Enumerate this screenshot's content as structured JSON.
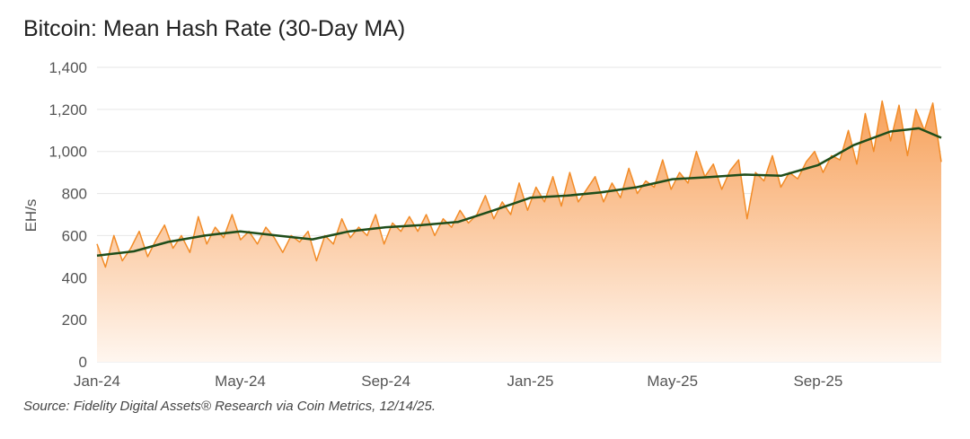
{
  "chart_data": {
    "type": "line",
    "title": "Bitcoin: Mean Hash Rate (30-Day MA)",
    "ylabel": "EH/s",
    "xlabel": "",
    "ylim": [
      0,
      1400
    ],
    "yticks": [
      "0",
      "200",
      "400",
      "600",
      "800",
      "1,000",
      "1,200",
      "1,400"
    ],
    "ytick_values": [
      0,
      200,
      400,
      600,
      800,
      1000,
      1200,
      1400
    ],
    "xticks": [
      "Jan-24",
      "May-24",
      "Sep-24",
      "Jan-25",
      "May-25",
      "Sep-25"
    ],
    "xtick_dates": [
      "2024-01-01",
      "2024-05-01",
      "2024-09-01",
      "2025-01-01",
      "2025-05-01",
      "2025-09-01"
    ],
    "x_range": [
      "2024-01-01",
      "2025-12-14"
    ],
    "grid": "horizontal",
    "colors": {
      "daily": "#f28c28",
      "ma": "#1f4d1a",
      "fill_top": "#f7a15a",
      "fill_bottom": "#fff6ef"
    },
    "series": [
      {
        "key": "daily",
        "sampling": "weekly",
        "start": "2024-01-01",
        "end": "2025-12-14",
        "values": [
          560,
          450,
          600,
          480,
          540,
          620,
          500,
          580,
          650,
          540,
          600,
          520,
          690,
          560,
          640,
          590,
          700,
          580,
          620,
          560,
          640,
          590,
          520,
          600,
          570,
          620,
          480,
          600,
          560,
          680,
          590,
          640,
          600,
          700,
          560,
          660,
          620,
          690,
          620,
          700,
          600,
          680,
          640,
          720,
          660,
          700,
          790,
          680,
          760,
          700,
          850,
          720,
          830,
          760,
          880,
          740,
          900,
          760,
          820,
          880,
          760,
          850,
          780,
          920,
          800,
          860,
          830,
          960,
          820,
          900,
          850,
          1000,
          880,
          940,
          820,
          910,
          960,
          680,
          900,
          860,
          980,
          830,
          900,
          870,
          950,
          1000,
          900,
          980,
          960,
          1100,
          940,
          1180,
          1000,
          1240,
          1050,
          1220,
          980,
          1200,
          1100,
          1230,
          950
        ]
      },
      {
        "key": "ma",
        "dates": [
          "2024-01-01",
          "2024-02-01",
          "2024-03-01",
          "2024-04-01",
          "2024-05-01",
          "2024-06-01",
          "2024-07-01",
          "2024-08-01",
          "2024-09-01",
          "2024-10-01",
          "2024-11-01",
          "2024-12-01",
          "2025-01-01",
          "2025-02-01",
          "2025-03-01",
          "2025-04-01",
          "2025-05-01",
          "2025-06-01",
          "2025-07-01",
          "2025-08-01",
          "2025-09-01",
          "2025-10-01",
          "2025-11-01",
          "2025-11-25",
          "2025-12-14"
        ],
        "values": [
          505,
          525,
          570,
          600,
          620,
          600,
          582,
          620,
          640,
          650,
          665,
          720,
          780,
          790,
          805,
          830,
          868,
          878,
          890,
          885,
          935,
          1030,
          1095,
          1110,
          1065
        ]
      }
    ]
  },
  "source": "Source: Fidelity Digital Assets® Research via Coin Metrics, 12/14/25."
}
